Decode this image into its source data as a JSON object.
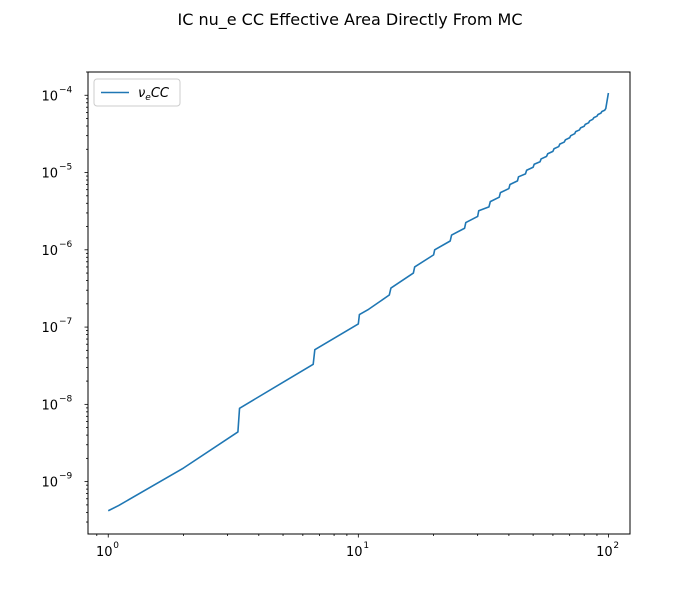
{
  "chart_data": {
    "type": "line",
    "title": "IC nu_e CC Effective Area Directly From MC",
    "xlabel": "",
    "ylabel": "",
    "xscale": "log",
    "yscale": "log",
    "xlim": [
      0.83,
      122
    ],
    "ylim": [
      2.1e-10,
      0.0002
    ],
    "grid": false,
    "legend_position": "upper-left",
    "x_tick_labels": [
      {
        "base": "10",
        "exp": "0",
        "value": 1
      },
      {
        "base": "10",
        "exp": "1",
        "value": 10
      },
      {
        "base": "10",
        "exp": "2",
        "value": 100
      }
    ],
    "y_tick_labels": [
      {
        "base": "10",
        "exp": "−9",
        "value": 1e-09
      },
      {
        "base": "10",
        "exp": "−8",
        "value": 1e-08
      },
      {
        "base": "10",
        "exp": "−7",
        "value": 1e-07
      },
      {
        "base": "10",
        "exp": "−6",
        "value": 1e-06
      },
      {
        "base": "10",
        "exp": "−5",
        "value": 1e-05
      },
      {
        "base": "10",
        "exp": "−4",
        "value": 0.0001
      }
    ],
    "series": [
      {
        "legend_main": "ν",
        "legend_sub": "e",
        "legend_tail": "CC",
        "color": "#1f77b4",
        "x": [
          1.0,
          1.1,
          2.0,
          3.3,
          3.35,
          6.6,
          6.7,
          10.0,
          10.1,
          11.0,
          13.3,
          13.5,
          16.6,
          16.8,
          20.0,
          20.2,
          23.3,
          23.6,
          26.6,
          26.9,
          30.0,
          30.3,
          33.3,
          33.7,
          36.6,
          37.0,
          40.0,
          40.4,
          43.3,
          43.7,
          46.6,
          47.1,
          50.0,
          50.5,
          53.3,
          53.8,
          56.6,
          57.2,
          60.0,
          60.6,
          63.3,
          63.9,
          66.6,
          67.3,
          70.0,
          70.7,
          73.3,
          74.0,
          76.6,
          77.4,
          80.0,
          80.8,
          83.3,
          84.1,
          86.6,
          87.5,
          90.0,
          90.9,
          93.3,
          94.2,
          96.6,
          97.6,
          100.0
        ],
        "y": [
          4.2e-10,
          4.9e-10,
          1.5e-09,
          4.4e-09,
          8.9e-09,
          3.3e-08,
          5.1e-08,
          1.1e-07,
          1.45e-07,
          1.7e-07,
          2.6e-07,
          3.2e-07,
          5e-07,
          6e-07,
          8.6e-07,
          1e-06,
          1.3e-06,
          1.55e-06,
          1.9e-06,
          2.25e-06,
          2.7e-06,
          3.2e-06,
          3.6e-06,
          4.2e-06,
          4.8e-06,
          5.5e-06,
          6.2e-06,
          7e-06,
          7.8e-06,
          8.8e-06,
          9.6e-06,
          1.07e-05,
          1.17e-05,
          1.28e-05,
          1.38e-05,
          1.5e-05,
          1.62e-05,
          1.75e-05,
          1.88e-05,
          2.03e-05,
          2.17e-05,
          2.33e-05,
          2.48e-05,
          2.65e-05,
          2.82e-05,
          3e-05,
          3.18e-05,
          3.38e-05,
          3.56e-05,
          3.78e-05,
          3.97e-05,
          4.2e-05,
          4.4e-05,
          4.65e-05,
          4.88e-05,
          5.14e-05,
          5.36e-05,
          5.64e-05,
          5.87e-05,
          6.17e-05,
          6.4e-05,
          6.72e-05,
          0.000107
        ]
      }
    ]
  }
}
